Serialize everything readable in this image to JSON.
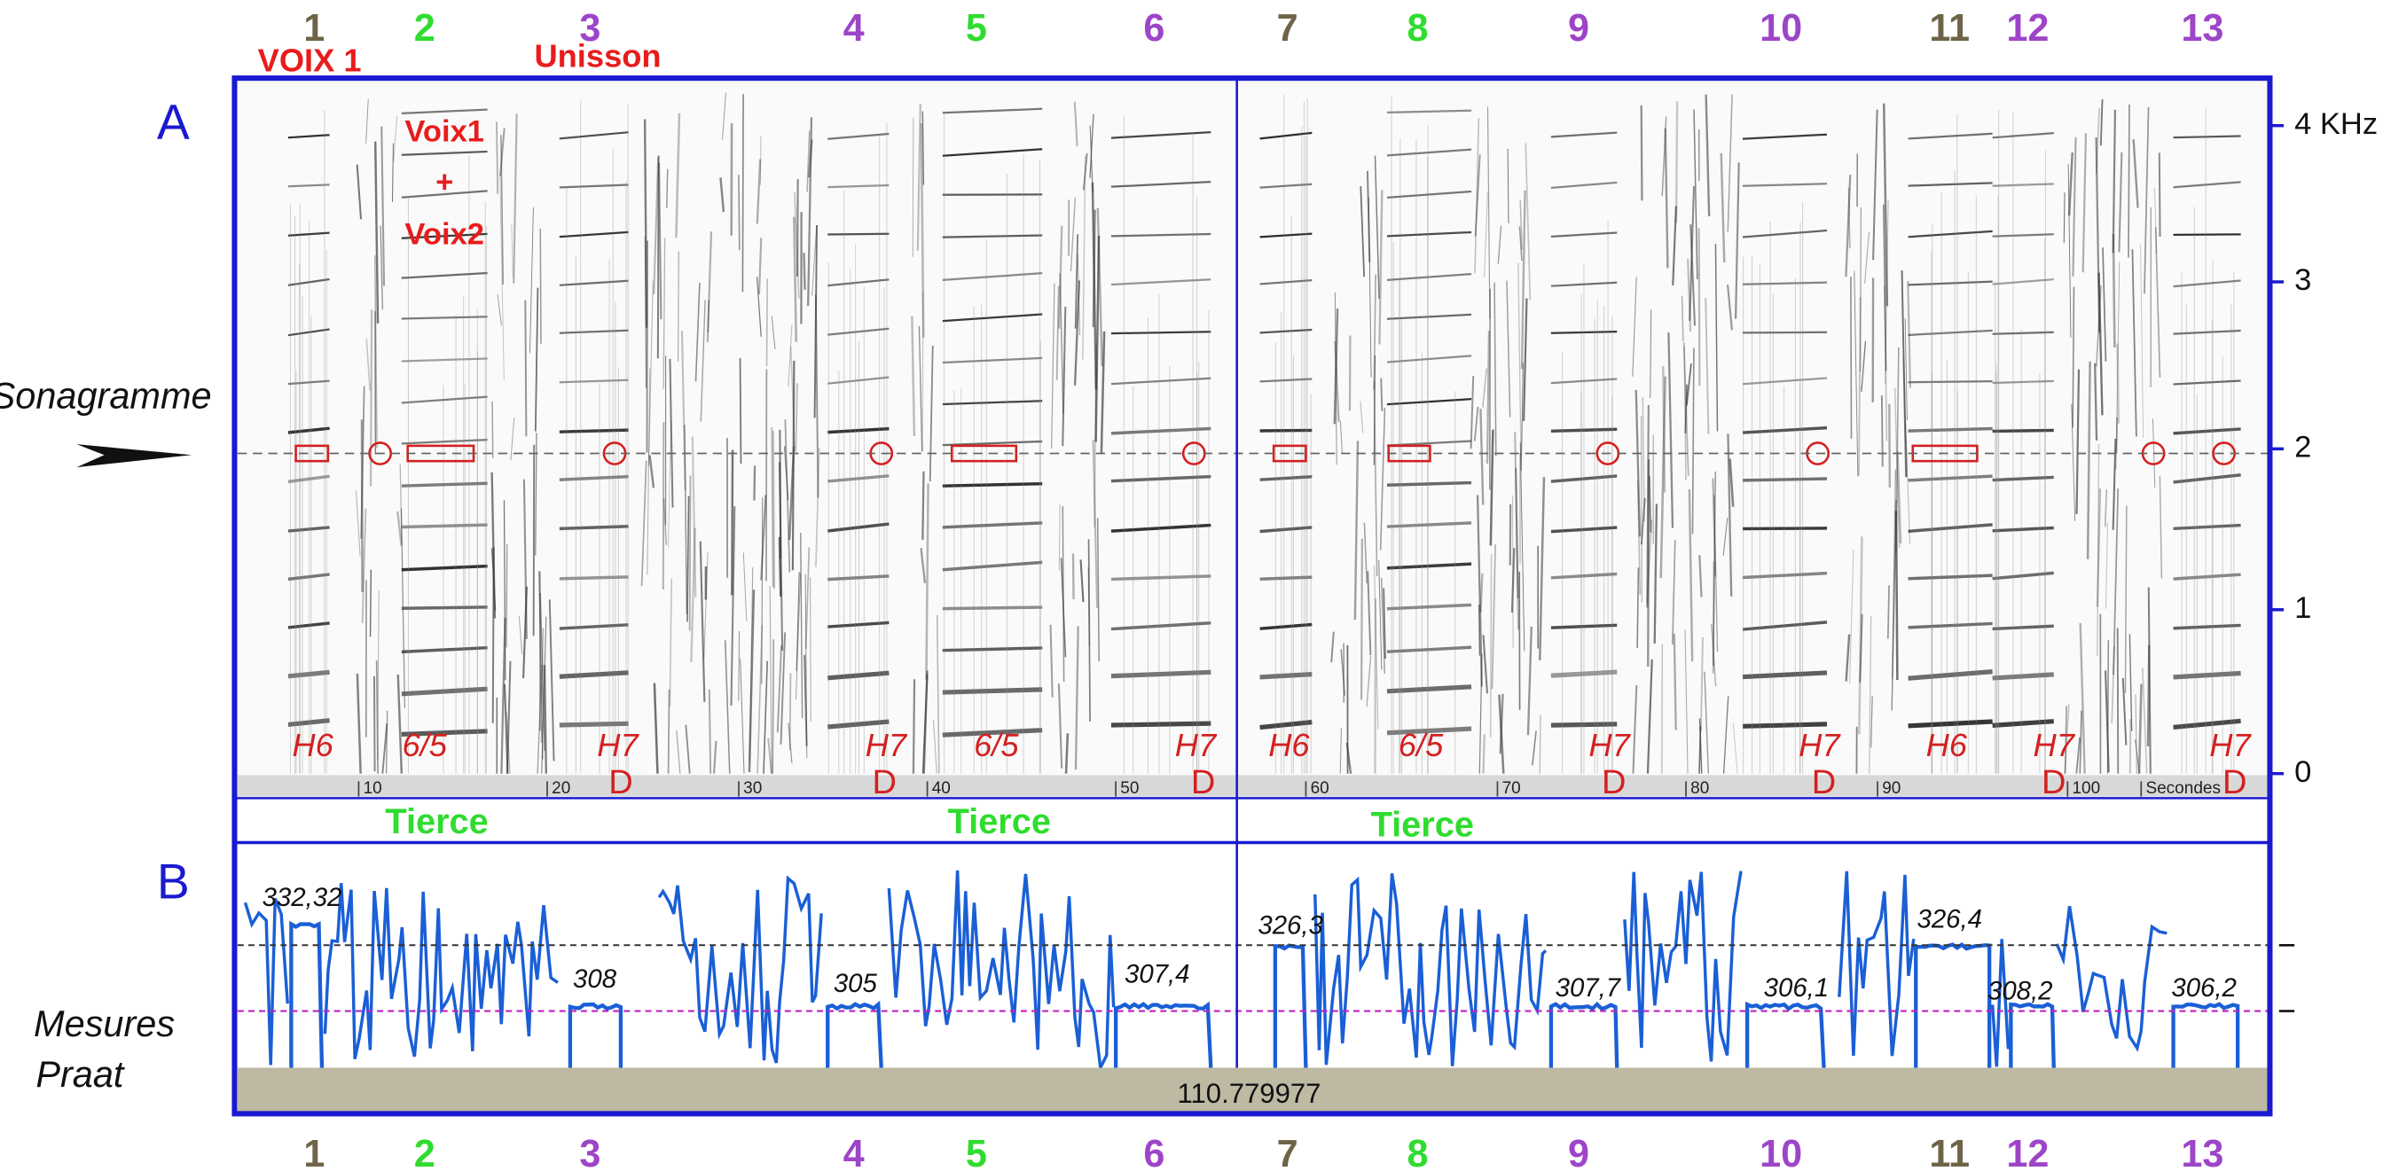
{
  "top_numbers": [
    "1",
    "2",
    "3",
    "4",
    "5",
    "6",
    "7",
    "8",
    "9",
    "10",
    "11",
    "12",
    "13"
  ],
  "bottom_numbers": [
    "1",
    "2",
    "3",
    "4",
    "5",
    "6",
    "7",
    "8",
    "9",
    "10",
    "11",
    "12",
    "13"
  ],
  "annotations": {
    "voix1": "VOIX 1",
    "unisson": "Unisson",
    "voix1_plus": "Voix1",
    "plus": "+",
    "voix2": "Voix2"
  },
  "panels": {
    "a": "A",
    "b": "B"
  },
  "side_labels": {
    "sonagramme": "Sonagramme",
    "mesures": "Mesures",
    "praat": "Praat"
  },
  "frequency_axis": [
    "4 KHz",
    "3",
    "2",
    "1",
    "0"
  ],
  "time_axis": [
    "10",
    "20",
    "30",
    "40",
    "50",
    "60",
    "70",
    "80",
    "90",
    "100",
    "Secondes"
  ],
  "harmonic_labels": [
    "H6",
    "6/5",
    "H7",
    "H7",
    "6/5",
    "H7",
    "H6",
    "6/5",
    "H7",
    "H7",
    "H6",
    "H7",
    "H7"
  ],
  "d_marks": [
    "D",
    "D",
    "D",
    "D",
    "D",
    "D",
    "D"
  ],
  "tierce_labels": [
    "Tierce",
    "Tierce",
    "Tierce"
  ],
  "pitch_values": [
    "332,32",
    "308",
    "305",
    "307,4",
    "326,3",
    "307,7",
    "306,1",
    "326,4",
    "308,2",
    "306,2"
  ],
  "praat_readout": "110.779977"
}
